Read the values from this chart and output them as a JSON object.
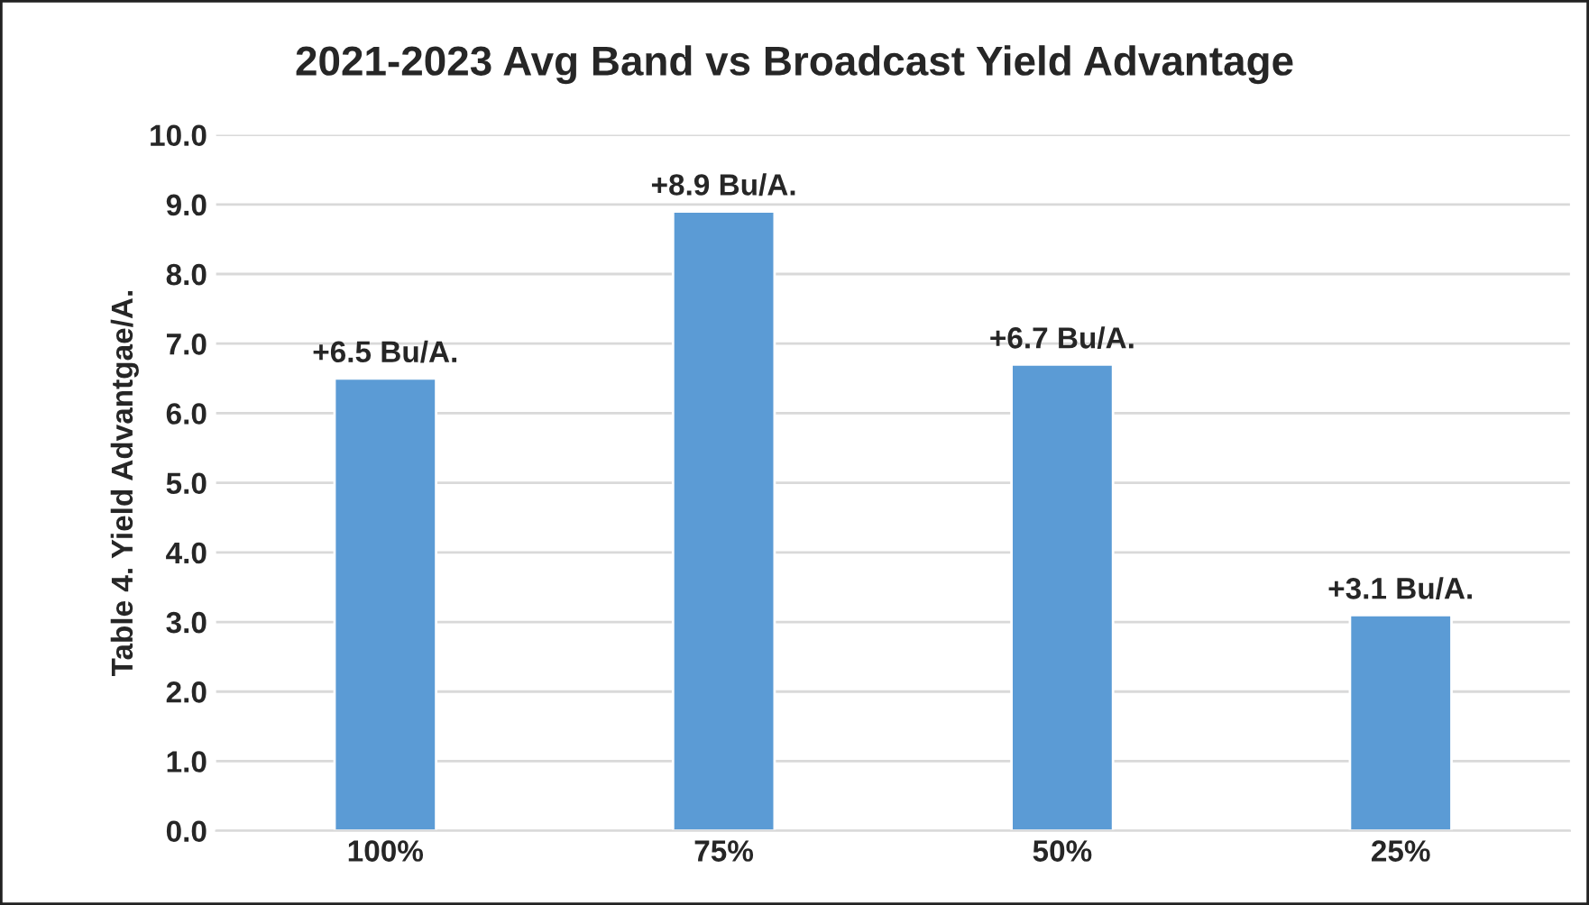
{
  "chart_data": {
    "type": "bar",
    "title": "2021-2023 Avg Band vs Broadcast Yield Advantage",
    "ylabel": "Table 4. Yield Advantgae/A.",
    "categories": [
      "100%",
      "75%",
      "50%",
      "25%"
    ],
    "values": [
      6.5,
      8.9,
      6.7,
      3.1
    ],
    "value_labels": [
      "+6.5 Bu/A.",
      "+8.9 Bu/A.",
      "+6.7 Bu/A.",
      "+3.1 Bu/A."
    ],
    "color": "#5b9bd5",
    "ylim": [
      0,
      10
    ],
    "yticks": [
      {
        "value": 0,
        "label": "0.0"
      },
      {
        "value": 1,
        "label": "1.0"
      },
      {
        "value": 2,
        "label": "2.0"
      },
      {
        "value": 3,
        "label": "3.0"
      },
      {
        "value": 4,
        "label": "4.0"
      },
      {
        "value": 5,
        "label": "5.0"
      },
      {
        "value": 6,
        "label": "6.0"
      },
      {
        "value": 7,
        "label": "7.0"
      },
      {
        "value": 8,
        "label": "8.0"
      },
      {
        "value": 9,
        "label": "9.0"
      },
      {
        "value": 10,
        "label": "10.0"
      }
    ],
    "grid": "y",
    "legend": false
  }
}
